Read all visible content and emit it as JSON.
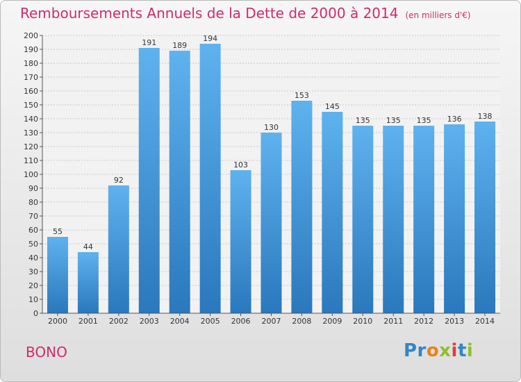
{
  "chart_data": {
    "type": "bar",
    "title": "Remboursements Annuels de la Dette de 2000 à 2014",
    "subtitle": "(en milliers d'€)",
    "categories": [
      "2000",
      "2001",
      "2002",
      "2003",
      "2004",
      "2005",
      "2006",
      "2007",
      "2008",
      "2009",
      "2010",
      "2011",
      "2012",
      "2013",
      "2014"
    ],
    "values": [
      55,
      44,
      92,
      191,
      189,
      194,
      103,
      130,
      153,
      145,
      135,
      135,
      135,
      136,
      138
    ],
    "xlabel": "",
    "ylabel": "",
    "ylim": [
      0,
      200
    ],
    "ytick_step": 10,
    "grid": true,
    "bar_color": "#3d94dc"
  },
  "footer": {
    "commune": "BONO",
    "logo": [
      "Pr",
      "o",
      "x",
      "i",
      "t",
      "i"
    ]
  }
}
